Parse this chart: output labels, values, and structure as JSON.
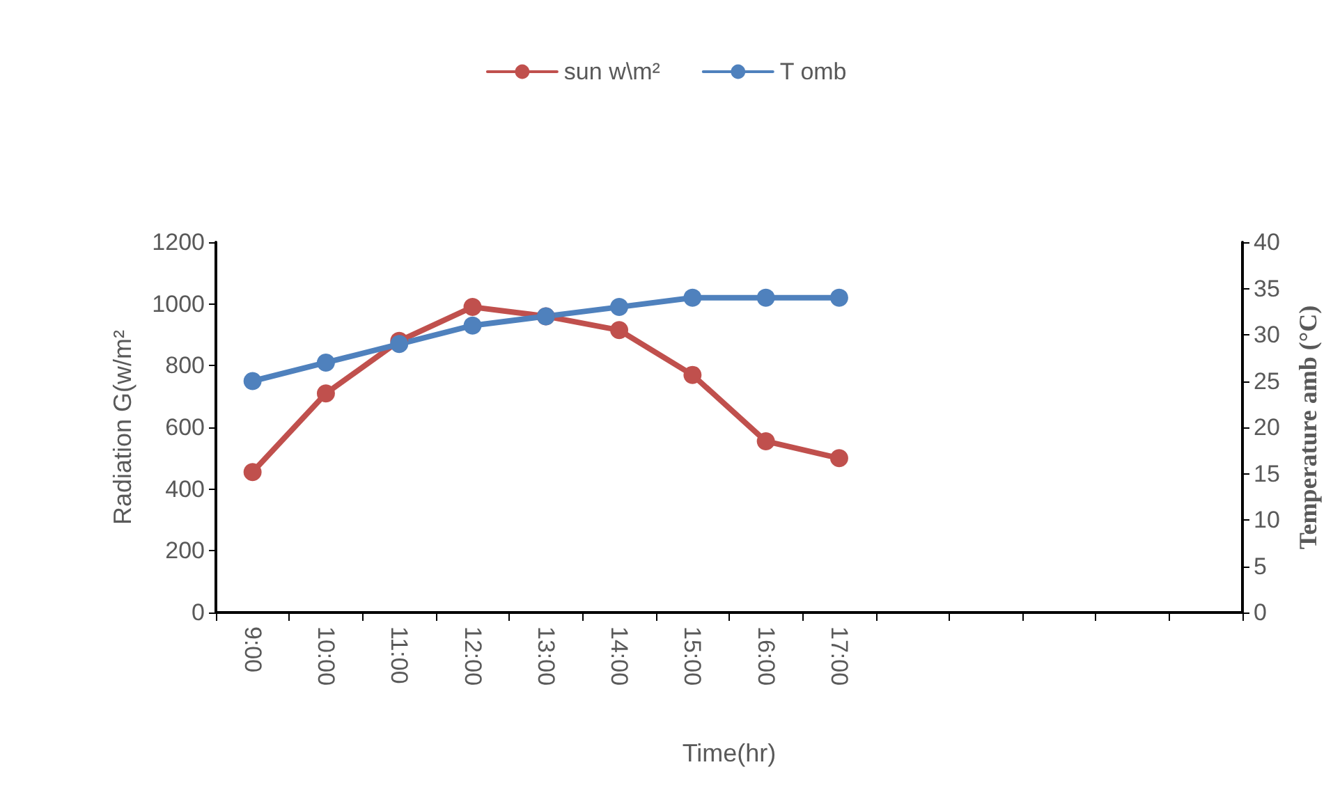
{
  "chart_data": {
    "type": "line",
    "xlabel": "Time(hr)",
    "ylabel": "Radiation G(w/m²",
    "y2label": "Temperature amb (°C)",
    "categories": [
      "9:00",
      "10:00",
      "11:00",
      "12:00",
      "13:00",
      "14:00",
      "15:00",
      "16:00",
      "17:00",
      null,
      null,
      null,
      null,
      null
    ],
    "series": [
      {
        "name": "sun w\\m²",
        "color": "#c0504d",
        "values": [
          455,
          710,
          880,
          990,
          960,
          915,
          770,
          555,
          500,
          null,
          null,
          null,
          null,
          null
        ]
      },
      {
        "name": "T omb",
        "color": "#4f81bd",
        "axis": "y2",
        "values": [
          25,
          27,
          29,
          31,
          32,
          33,
          34,
          34,
          34,
          null,
          null,
          null,
          null,
          null
        ]
      }
    ],
    "ylim": [
      0,
      1200
    ],
    "yticks": [
      0,
      200,
      400,
      600,
      800,
      1000,
      1200
    ],
    "y2lim": [
      0,
      40
    ],
    "y2ticks": [
      0,
      5,
      10,
      15,
      20,
      25,
      30,
      35,
      40
    ],
    "grid": false,
    "legend": "top",
    "marker": "circle",
    "line_style": "solid"
  }
}
